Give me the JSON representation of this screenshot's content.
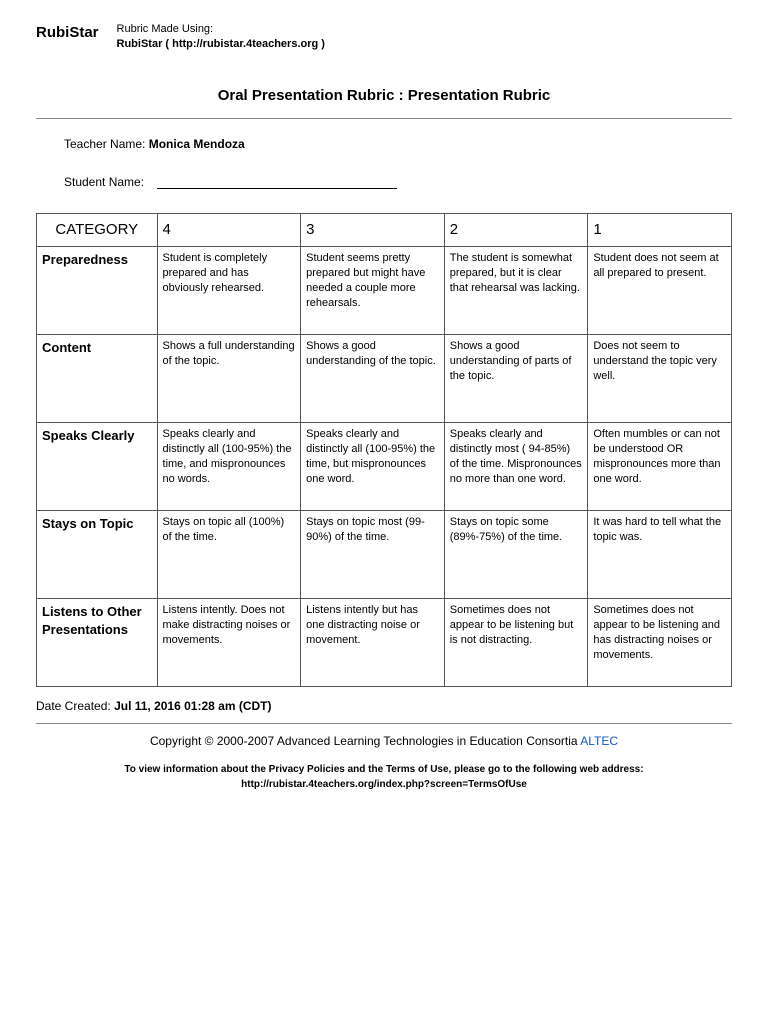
{
  "header": {
    "logo": "RubiStar",
    "madeUsing1": "Rubric Made Using:",
    "madeUsing2": "RubiStar ( http://rubistar.4teachers.org )"
  },
  "title": "Oral Presentation Rubric : Presentation Rubric",
  "teacher": {
    "label": "Teacher Name:",
    "value": "Monica Mendoza"
  },
  "student": {
    "label": "Student Name:",
    "value": ""
  },
  "table": {
    "headers": [
      "CATEGORY",
      "4",
      "3",
      "2",
      "1"
    ],
    "rows": [
      {
        "category": "Preparedness",
        "cells": [
          "Student is completely prepared and has obviously rehearsed.",
          "Student seems pretty prepared but might have needed a couple more rehearsals.",
          "The student is somewhat prepared, but it is clear that rehearsal was lacking.",
          "Student does not seem at all prepared to present."
        ]
      },
      {
        "category": "Content",
        "cells": [
          "Shows a full understanding of the topic.",
          "Shows a good understanding of the topic.",
          "Shows a good understanding of parts of the topic.",
          "Does not seem to understand the topic very well."
        ]
      },
      {
        "category": "Speaks Clearly",
        "cells": [
          "Speaks clearly and distinctly all (100-95%) the time, and mispronounces no words.",
          "Speaks clearly and distinctly all (100-95%) the time, but mispronounces one word.",
          "Speaks clearly and distinctly most ( 94-85%) of the time. Mispronounces no more than one word.",
          "Often mumbles or can not be understood OR mispronounces more than one word."
        ]
      },
      {
        "category": "Stays on Topic",
        "cells": [
          "Stays on topic all (100%) of the time.",
          "Stays on topic most (99-90%) of the time.",
          "Stays on topic some (89%-75%) of the time.",
          "It was hard to tell what the topic was."
        ]
      },
      {
        "category": "Listens to Other Presentations",
        "cells": [
          "Listens intently. Does not make distracting noises or movements.",
          "Listens intently but has one distracting noise or movement.",
          "Sometimes does not appear to be listening but is not distracting.",
          "Sometimes does not appear to be listening and has distracting noises or movements."
        ]
      }
    ]
  },
  "date": {
    "label": "Date Created:",
    "value": "Jul 11, 2016 01:28 am (CDT)"
  },
  "copyright": {
    "text": "Copyright © 2000-2007 Advanced Learning Technologies in Education Consortia ",
    "link": "ALTEC"
  },
  "terms": {
    "line1": "To view information about the Privacy Policies and the Terms of Use, please go to the following web address:",
    "line2": "http://rubistar.4teachers.org/index.php?screen=TermsOfUse"
  }
}
